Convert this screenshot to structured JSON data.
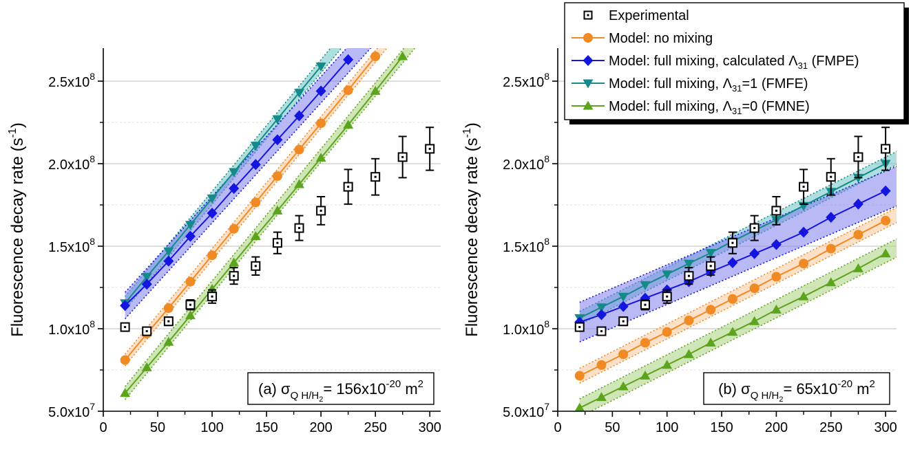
{
  "chart_data": [
    {
      "type": "line",
      "panel": "a",
      "annotation": {
        "prefix": "(a) σ",
        "sub": "Q H/H",
        "sub2": "2",
        "value": "= 156x10",
        "exp": "-20",
        "unit": " m",
        "unit_exp": "2"
      },
      "xlabel": "Pressure (Pa)",
      "ylabel": {
        "main": "Fluorescence decay rate (s",
        "exp": "-1",
        "close": ")"
      },
      "xlim": [
        0,
        310
      ],
      "ylim": [
        50000000,
        270000000
      ],
      "xticks": [
        0,
        50,
        100,
        150,
        200,
        250,
        300
      ],
      "yticks": [
        {
          "value": 50000000,
          "mant": "5.0x10",
          "exp": "7"
        },
        {
          "value": 100000000,
          "mant": "1.0x10",
          "exp": "8"
        },
        {
          "value": 150000000,
          "mant": "1.5x10",
          "exp": "8"
        },
        {
          "value": 200000000,
          "mant": "2.0x10",
          "exp": "8"
        },
        {
          "value": 250000000,
          "mant": "2.5x10",
          "exp": "8"
        }
      ],
      "grid": true,
      "series": [
        {
          "key": "exp",
          "x": [
            20,
            40,
            60,
            80,
            100,
            120,
            140,
            160,
            180,
            200,
            225,
            250,
            275,
            300
          ],
          "y": [
            101000000,
            98500000,
            104500000,
            114500000,
            119500000,
            132000000,
            138000000,
            152000000,
            161000000,
            171500000,
            186000000,
            192000000,
            204000000,
            209000000
          ],
          "err": [
            2000000,
            2000000,
            2500000,
            3000000,
            4000000,
            5000000,
            5500000,
            6500000,
            7500000,
            8500000,
            10500000,
            11000000,
            12500000,
            13000000
          ]
        },
        {
          "key": "nomix",
          "x": [
            20,
            40,
            60,
            80,
            100,
            120,
            140,
            160,
            180,
            200,
            225,
            250
          ],
          "y": [
            81000000,
            97000000,
            112500000,
            128500000,
            144500000,
            160500000,
            176500000,
            192500000,
            208500000,
            224500000,
            244500000,
            265000000
          ],
          "band": 3500000
        },
        {
          "key": "fmpe",
          "x": [
            20,
            40,
            60,
            80,
            100,
            120,
            140,
            160,
            180,
            200,
            225
          ],
          "y": [
            114000000,
            127000000,
            141000000,
            156000000,
            170000000,
            185000000,
            199500000,
            214500000,
            229000000,
            244000000,
            263000000
          ],
          "band": 8000000
        },
        {
          "key": "fmfe",
          "x": [
            20,
            40,
            60,
            80,
            100,
            120,
            140,
            160,
            180,
            200
          ],
          "y": [
            115500000,
            131500000,
            147000000,
            163000000,
            179000000,
            195000000,
            211000000,
            227000000,
            243000000,
            259000000
          ],
          "band": 4000000
        },
        {
          "key": "fmne",
          "x": [
            20,
            40,
            60,
            80,
            100,
            120,
            140,
            160,
            180,
            200,
            225,
            250,
            275
          ],
          "y": [
            61000000,
            76500000,
            92000000,
            108000000,
            124000000,
            140000000,
            156000000,
            171500000,
            187500000,
            203500000,
            223500000,
            244000000,
            265000000
          ],
          "band": 4000000
        }
      ]
    },
    {
      "type": "line",
      "panel": "b",
      "annotation": {
        "prefix": "(b) σ",
        "sub": "Q H/H",
        "sub2": "2",
        "value": "= 65x10",
        "exp": "-20",
        "unit": " m",
        "unit_exp": "2"
      },
      "xlabel": "Pressure (Pa)",
      "ylabel": {
        "main": "Fluorescence decay rate (s",
        "exp": "-1",
        "close": ")"
      },
      "xlim": [
        0,
        310
      ],
      "ylim": [
        50000000,
        270000000
      ],
      "xticks": [
        0,
        50,
        100,
        150,
        200,
        250,
        300
      ],
      "yticks": [
        {
          "value": 50000000,
          "mant": "5.0x10",
          "exp": "7"
        },
        {
          "value": 100000000,
          "mant": "1.0x10",
          "exp": "8"
        },
        {
          "value": 150000000,
          "mant": "1.5x10",
          "exp": "8"
        },
        {
          "value": 200000000,
          "mant": "2.0x10",
          "exp": "8"
        },
        {
          "value": 250000000,
          "mant": "2.5x10",
          "exp": "8"
        }
      ],
      "grid": true,
      "series": [
        {
          "key": "exp",
          "x": [
            20,
            40,
            60,
            80,
            100,
            120,
            140,
            160,
            180,
            200,
            225,
            250,
            275,
            300
          ],
          "y": [
            101000000,
            98500000,
            104500000,
            114500000,
            119500000,
            132000000,
            138000000,
            152000000,
            161000000,
            171500000,
            186000000,
            192000000,
            204000000,
            209000000
          ],
          "err": [
            2000000,
            2000000,
            2500000,
            3000000,
            4000000,
            5000000,
            5500000,
            6500000,
            7500000,
            8500000,
            10500000,
            11000000,
            12500000,
            13000000
          ]
        },
        {
          "key": "nomix",
          "x": [
            20,
            40,
            60,
            80,
            100,
            120,
            140,
            160,
            180,
            200,
            225,
            250,
            275,
            300
          ],
          "y": [
            71500000,
            78000000,
            84500000,
            91500000,
            98000000,
            105000000,
            111500000,
            118000000,
            124500000,
            131500000,
            139500000,
            148500000,
            157000000,
            165500000
          ],
          "band": 4500000
        },
        {
          "key": "fmpe",
          "x": [
            20,
            40,
            60,
            80,
            100,
            120,
            140,
            160,
            180,
            200,
            225,
            250,
            275,
            300
          ],
          "y": [
            104000000,
            108500000,
            113500000,
            118500000,
            123500000,
            128500000,
            134500000,
            140000000,
            145500000,
            151000000,
            158500000,
            167500000,
            175500000,
            183500000
          ],
          "band": 12000000
        },
        {
          "key": "fmfe",
          "x": [
            20,
            40,
            60,
            80,
            100,
            120,
            140,
            160,
            180,
            200,
            225,
            250,
            275,
            300
          ],
          "y": [
            106500000,
            113000000,
            119500000,
            126500000,
            133000000,
            139500000,
            146000000,
            153000000,
            159500000,
            166000000,
            174500000,
            183000000,
            191500000,
            200000000
          ],
          "band": 4000000
        },
        {
          "key": "fmne",
          "x": [
            20,
            40,
            60,
            80,
            100,
            120,
            140,
            160,
            180,
            200,
            225,
            250,
            275,
            300
          ],
          "y": [
            52000000,
            58500000,
            65000000,
            71500000,
            78000000,
            84500000,
            91500000,
            98000000,
            104500000,
            111500000,
            119500000,
            128000000,
            136500000,
            145500000
          ],
          "band": 5500000
        }
      ]
    }
  ],
  "legend": {
    "placement": "top-right",
    "entries": [
      {
        "key": "exp",
        "label": "Experimental",
        "color": "#000000",
        "marker": "open-square"
      },
      {
        "key": "nomix",
        "label": "Model: no mixing",
        "color": "#f08a24",
        "fill": "#f9c99a",
        "marker": "circle"
      },
      {
        "key": "fmpe",
        "label": "Model: full mixing, calculated Λ",
        "sub": "31",
        "suffix": " (FMPE)",
        "color": "#1515e0",
        "fill": "#8080ee",
        "marker": "diamond"
      },
      {
        "key": "fmfe",
        "label": "Model: full mixing, Λ",
        "sub": "31",
        "suffix": "=1 (FMFE)",
        "color": "#148a8a",
        "fill": "#6cc2c2",
        "marker": "triangle-down"
      },
      {
        "key": "fmne",
        "label": "Model: full mixing, Λ",
        "sub": "31",
        "suffix": "=0 (FMNE)",
        "color": "#5ca41e",
        "fill": "#a9d27c",
        "marker": "triangle-up"
      }
    ]
  }
}
